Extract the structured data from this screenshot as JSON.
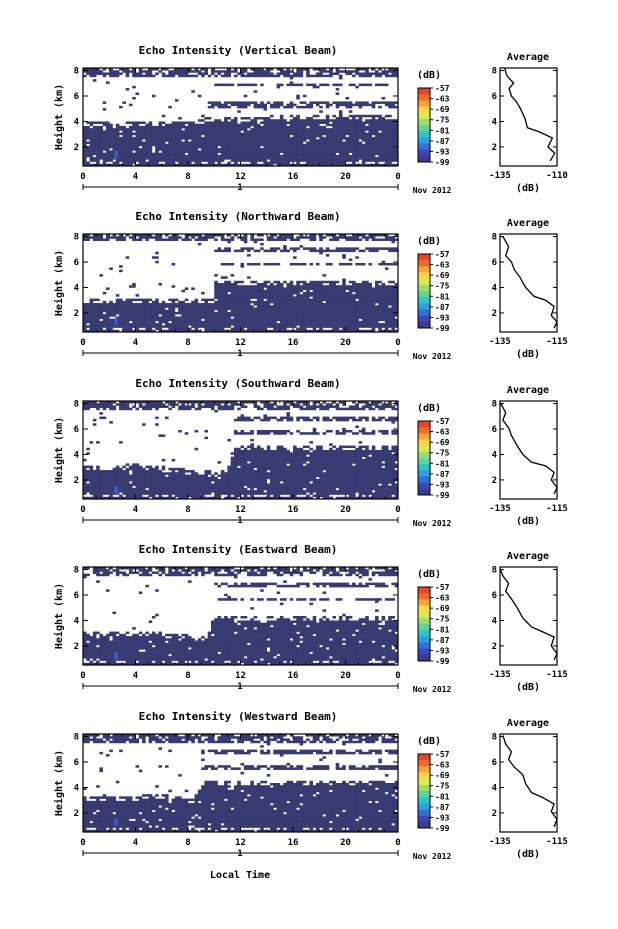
{
  "figure": {
    "xlabel": "Local Time",
    "date_label": "Nov 2012",
    "day_label": "1",
    "colorbar_unit": "(dB)",
    "colorbar_ticks": [
      "-57",
      "-63",
      "-69",
      "-75",
      "-81",
      "-87",
      "-93",
      "-99"
    ],
    "profile_title": "Average",
    "profile_xlabel": "(dB)",
    "panel_ylabel": "Height (km)"
  },
  "chart_data": [
    {
      "type": "heatmap",
      "title": "Echo Intensity (Vertical Beam)",
      "xlabel": "",
      "ylabel": "Height (km)",
      "xlim": [
        0,
        24
      ],
      "ylim": [
        0.5,
        8.2
      ],
      "x_ticks": [
        "0",
        "4",
        "8",
        "12",
        "16",
        "20",
        "0"
      ],
      "y_ticks": [
        "2",
        "4",
        "6",
        "8"
      ],
      "colorbar": {
        "label": "(dB)",
        "range": [
          -99,
          -57
        ],
        "ticks": [
          -57,
          -63,
          -69,
          -75,
          -81,
          -87,
          -93,
          -99
        ]
      },
      "layer_tops_km": [
        [
          0,
          3.9
        ],
        [
          8.6,
          3.9
        ],
        [
          9.5,
          4.2
        ],
        [
          15,
          4.3
        ],
        [
          24,
          4.3
        ]
      ],
      "cloud_bands_km": [
        [
          9.5,
          24,
          5.0,
          5.6
        ],
        [
          9.5,
          24,
          6.8,
          7.0
        ],
        [
          0,
          24,
          7.5,
          8.2
        ]
      ],
      "weak_echo_patch": {
        "x_hours": 2.4,
        "y_km": [
          1.1,
          1.7
        ]
      },
      "profile": {
        "title": "Average",
        "xlabel": "(dB)",
        "xlim": [
          -135,
          -110
        ],
        "x_ticks": [
          "-135",
          "-110"
        ],
        "y_ticks": [
          "2",
          "4",
          "6",
          "8"
        ],
        "points": [
          [
            -113,
            0.9
          ],
          [
            -111,
            1.5
          ],
          [
            -114,
            2.0
          ],
          [
            -112,
            2.7
          ],
          [
            -118,
            3.2
          ],
          [
            -123,
            3.5
          ],
          [
            -124,
            4.2
          ],
          [
            -126,
            5.0
          ],
          [
            -128,
            5.6
          ],
          [
            -130,
            6.0
          ],
          [
            -131,
            6.6
          ],
          [
            -129,
            7.0
          ],
          [
            -132,
            7.6
          ],
          [
            -133,
            8.2
          ]
        ]
      }
    },
    {
      "type": "heatmap",
      "title": "Echo Intensity (Northward Beam)",
      "xlabel": "",
      "ylabel": "Height (km)",
      "xlim": [
        0,
        24
      ],
      "ylim": [
        0.5,
        8.2
      ],
      "x_ticks": [
        "0",
        "4",
        "8",
        "12",
        "16",
        "20",
        "0"
      ],
      "y_ticks": [
        "2",
        "4",
        "6",
        "8"
      ],
      "colorbar": {
        "label": "(dB)",
        "range": [
          -99,
          -57
        ],
        "ticks": [
          -57,
          -63,
          -69,
          -75,
          -81,
          -87,
          -93,
          -99
        ]
      },
      "layer_tops_km": [
        [
          0,
          3.0
        ],
        [
          5,
          3.0
        ],
        [
          10,
          3.0
        ],
        [
          10.1,
          4.3
        ],
        [
          24,
          4.3
        ]
      ],
      "cloud_bands_km": [
        [
          10,
          24,
          5.8,
          6.0
        ],
        [
          10,
          24,
          6.8,
          7.2
        ],
        [
          0,
          24,
          7.6,
          8.2
        ]
      ],
      "weak_echo_patch": {
        "x_hours": 2.4,
        "y_km": [
          1.0,
          1.6
        ]
      },
      "profile": {
        "title": "Average",
        "xlabel": "(dB)",
        "xlim": [
          -135,
          -115
        ],
        "x_ticks": [
          "-135",
          "-115"
        ],
        "y_ticks": [
          "2",
          "4",
          "6",
          "8"
        ],
        "points": [
          [
            -116,
            0.8
          ],
          [
            -115,
            1.3
          ],
          [
            -117,
            1.8
          ],
          [
            -116,
            2.5
          ],
          [
            -119,
            3.0
          ],
          [
            -123,
            3.3
          ],
          [
            -126,
            4.0
          ],
          [
            -128,
            4.8
          ],
          [
            -130,
            5.4
          ],
          [
            -131,
            6.0
          ],
          [
            -133,
            6.5
          ],
          [
            -132,
            7.2
          ],
          [
            -134,
            8.0
          ]
        ]
      }
    },
    {
      "type": "heatmap",
      "title": "Echo Intensity (Southward Beam)",
      "xlabel": "",
      "ylabel": "Height (km)",
      "xlim": [
        0,
        24
      ],
      "ylim": [
        0.5,
        8.2
      ],
      "x_ticks": [
        "0",
        "4",
        "8",
        "12",
        "16",
        "20",
        "0"
      ],
      "y_ticks": [
        "2",
        "4",
        "6",
        "8"
      ],
      "colorbar": {
        "label": "(dB)",
        "range": [
          -99,
          -57
        ],
        "ticks": [
          -57,
          -63,
          -69,
          -75,
          -81,
          -87,
          -93,
          -99
        ]
      },
      "layer_tops_km": [
        [
          0,
          2.9
        ],
        [
          4,
          3.1
        ],
        [
          8,
          2.7
        ],
        [
          11,
          2.4
        ],
        [
          11.5,
          4.6
        ],
        [
          24,
          4.6
        ]
      ],
      "cloud_bands_km": [
        [
          11.5,
          24,
          5.6,
          5.9
        ],
        [
          11.5,
          24,
          6.6,
          7.0
        ],
        [
          0,
          24,
          7.5,
          8.2
        ]
      ],
      "weak_echo_patch": {
        "x_hours": 2.4,
        "y_km": [
          0.9,
          1.5
        ]
      },
      "profile": {
        "title": "Average",
        "xlabel": "(dB)",
        "xlim": [
          -135,
          -115
        ],
        "x_ticks": [
          "-135",
          "-115"
        ],
        "y_ticks": [
          "2",
          "4",
          "6",
          "8"
        ],
        "points": [
          [
            -116,
            0.9
          ],
          [
            -115,
            1.4
          ],
          [
            -117,
            2.0
          ],
          [
            -116,
            2.6
          ],
          [
            -119,
            3.1
          ],
          [
            -124,
            3.4
          ],
          [
            -127,
            4.0
          ],
          [
            -129,
            4.7
          ],
          [
            -131,
            5.5
          ],
          [
            -132,
            6.1
          ],
          [
            -134,
            6.7
          ],
          [
            -133,
            7.3
          ],
          [
            -135,
            8.1
          ]
        ]
      }
    },
    {
      "type": "heatmap",
      "title": "Echo Intensity (Eastward Beam)",
      "xlabel": "",
      "ylabel": "Height (km)",
      "xlim": [
        0,
        24
      ],
      "ylim": [
        0.5,
        8.2
      ],
      "x_ticks": [
        "0",
        "4",
        "8",
        "12",
        "16",
        "20",
        "0"
      ],
      "y_ticks": [
        "2",
        "4",
        "6",
        "8"
      ],
      "colorbar": {
        "label": "(dB)",
        "range": [
          -99,
          -57
        ],
        "ticks": [
          -57,
          -63,
          -69,
          -75,
          -81,
          -87,
          -93,
          -99
        ]
      },
      "layer_tops_km": [
        [
          0,
          2.9
        ],
        [
          6,
          2.9
        ],
        [
          9.5,
          2.6
        ],
        [
          10,
          4.2
        ],
        [
          24,
          4.2
        ]
      ],
      "cloud_bands_km": [
        [
          10,
          24,
          5.5,
          5.8
        ],
        [
          10,
          24,
          6.6,
          7.0
        ],
        [
          0,
          24,
          7.5,
          8.2
        ]
      ],
      "weak_echo_patch": {
        "x_hours": 2.4,
        "y_km": [
          0.9,
          1.5
        ]
      },
      "profile": {
        "title": "Average",
        "xlabel": "(dB)",
        "xlim": [
          -135,
          -115
        ],
        "x_ticks": [
          "-135",
          "-115"
        ],
        "y_ticks": [
          "2",
          "4",
          "6",
          "8"
        ],
        "points": [
          [
            -116,
            0.9
          ],
          [
            -115,
            1.4
          ],
          [
            -117,
            2.0
          ],
          [
            -116,
            2.7
          ],
          [
            -120,
            3.1
          ],
          [
            -124,
            3.5
          ],
          [
            -127,
            4.2
          ],
          [
            -129,
            5.0
          ],
          [
            -131,
            5.7
          ],
          [
            -133,
            6.3
          ],
          [
            -132,
            6.9
          ],
          [
            -134,
            7.5
          ],
          [
            -135,
            8.1
          ]
        ]
      }
    },
    {
      "type": "heatmap",
      "title": "Echo Intensity (Westward Beam)",
      "xlabel": "Local Time",
      "ylabel": "Height (km)",
      "xlim": [
        0,
        24
      ],
      "ylim": [
        0.5,
        8.2
      ],
      "x_ticks": [
        "0",
        "4",
        "8",
        "12",
        "16",
        "20",
        "0"
      ],
      "y_ticks": [
        "2",
        "4",
        "6",
        "8"
      ],
      "colorbar": {
        "label": "(dB)",
        "range": [
          -99,
          -57
        ],
        "ticks": [
          -57,
          -63,
          -69,
          -75,
          -81,
          -87,
          -93,
          -99
        ]
      },
      "layer_tops_km": [
        [
          0,
          3.1
        ],
        [
          6,
          3.3
        ],
        [
          8.5,
          3.0
        ],
        [
          9,
          4.3
        ],
        [
          24,
          4.3
        ]
      ],
      "cloud_bands_km": [
        [
          9,
          24,
          5.4,
          5.8
        ],
        [
          9,
          24,
          6.6,
          6.9
        ],
        [
          0,
          24,
          7.5,
          8.2
        ]
      ],
      "weak_echo_patch": {
        "x_hours": 2.4,
        "y_km": [
          1.0,
          1.6
        ]
      },
      "profile": {
        "title": "Average",
        "xlabel": "(dB)",
        "xlim": [
          -135,
          -115
        ],
        "x_ticks": [
          "-135",
          "-115"
        ],
        "y_ticks": [
          "2",
          "4",
          "6",
          "8"
        ],
        "points": [
          [
            -116,
            0.9
          ],
          [
            -115,
            1.5
          ],
          [
            -117,
            2.1
          ],
          [
            -116,
            2.7
          ],
          [
            -120,
            3.2
          ],
          [
            -124,
            3.6
          ],
          [
            -126,
            4.3
          ],
          [
            -127,
            5.0
          ],
          [
            -130,
            5.6
          ],
          [
            -132,
            6.2
          ],
          [
            -131,
            6.8
          ],
          [
            -133,
            7.4
          ],
          [
            -134,
            8.1
          ]
        ]
      }
    }
  ]
}
